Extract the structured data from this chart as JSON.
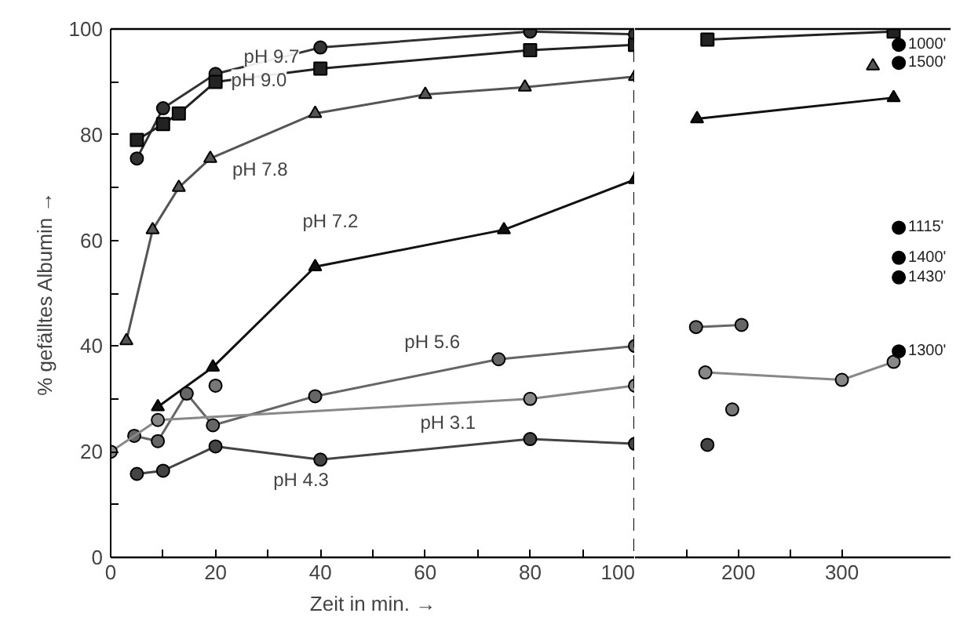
{
  "chart_data": [
    {
      "type": "line",
      "xlabel": "Zeit in min. →",
      "ylabel": "% gefälltes Albumin →",
      "xlim": [
        0,
        100
      ],
      "ylim": [
        0,
        100
      ],
      "xticks": [
        0,
        {
          "value": 10,
          "label": null
        },
        20,
        {
          "value": 30,
          "label": null
        },
        40,
        {
          "value": 50,
          "label": null
        },
        60,
        {
          "value": 70,
          "label": null
        },
        80,
        {
          "value": 90,
          "label": null
        },
        100
      ],
      "yticks": [
        0,
        {
          "value": 10,
          "label": null
        },
        20,
        {
          "value": 30,
          "label": null
        },
        40,
        {
          "value": 50,
          "label": null
        },
        60,
        {
          "value": 70,
          "label": null
        },
        80,
        {
          "value": 90,
          "label": null
        },
        100
      ],
      "grid": false,
      "ref_lines": [
        {
          "axis": "x",
          "value": 100,
          "color": "#000000",
          "line_style": "dashed"
        }
      ],
      "series": [
        {
          "name": "pH 9.7",
          "color": "#333333",
          "marker": "circle",
          "x": [
            5,
            10,
            20,
            40,
            80,
            100
          ],
          "values": [
            75.5,
            85,
            91.5,
            96.5,
            99.5,
            99
          ]
        },
        {
          "name": "pH 9.0",
          "color": "#222222",
          "marker": "square",
          "x": [
            5,
            10,
            13,
            20,
            40,
            80,
            100
          ],
          "values": [
            79,
            82,
            84,
            90,
            92.5,
            96,
            97
          ]
        },
        {
          "name": "pH 7.8",
          "color": "#555555",
          "marker": "triangle",
          "x": [
            3,
            8,
            13,
            19,
            39,
            60,
            79,
            100
          ],
          "values": [
            41,
            62,
            70,
            75.5,
            84,
            87.6,
            89,
            91
          ]
        },
        {
          "name": "pH 7.2",
          "color": "#111111",
          "marker": "triangle",
          "x": [
            9,
            19.5,
            39,
            75,
            100
          ],
          "values": [
            28.5,
            36,
            55,
            62,
            71.5
          ]
        },
        {
          "name": "pH 5.6",
          "color": "#666666",
          "marker": "circle",
          "x": [
            4.5,
            9,
            14.5,
            19.5,
            39,
            74,
            100
          ],
          "values": [
            23,
            22,
            31,
            25,
            30.5,
            37.5,
            40
          ]
        },
        {
          "name": "pH 3.1",
          "color": "#888888",
          "marker": "circle",
          "x": [
            0,
            9,
            80,
            100
          ],
          "values": [
            20,
            26,
            30,
            32.5
          ]
        },
        {
          "name": "pH 4.3",
          "color": "#444444",
          "marker": "circle",
          "x": [
            5,
            10,
            20,
            40,
            80,
            100
          ],
          "values": [
            15.8,
            16.4,
            21,
            18.5,
            22.4,
            21.5
          ]
        },
        {
          "type": "scatter",
          "color": "#777777",
          "marker": "circle",
          "x": [
            20
          ],
          "values": [
            32.5
          ]
        }
      ]
    },
    {
      "type": "line",
      "xlim": [
        100,
        405
      ],
      "ylim": [
        0,
        100
      ],
      "tick_labels": "x",
      "xticks": [
        {
          "value": 150,
          "label": null
        },
        200,
        {
          "value": 250,
          "label": null
        },
        300
      ],
      "grid": false,
      "annotations": [
        "1000'",
        "1500'",
        "1115'",
        "1400'",
        "1430'",
        "1300'"
      ],
      "series": [
        {
          "color": "#222222",
          "marker": "square",
          "x": [
            170,
            350
          ],
          "values": [
            98,
            99.5
          ]
        },
        {
          "color": "#555555",
          "marker": "triangle",
          "x": [
            330
          ],
          "values": [
            93
          ]
        },
        {
          "color": "#111111",
          "marker": "triangle",
          "x": [
            160,
            350
          ],
          "values": [
            83,
            87
          ]
        },
        {
          "color": "#666666",
          "marker": "circle",
          "x": [
            159,
            203
          ],
          "values": [
            43.6,
            44
          ]
        },
        {
          "color": "#888888",
          "marker": "circle",
          "x": [
            168,
            300,
            350
          ],
          "values": [
            35,
            33.6,
            37
          ]
        },
        {
          "color": "#444444",
          "marker": "circle",
          "x": [
            170
          ],
          "values": [
            21.3
          ]
        },
        {
          "type": "scatter",
          "color": "#777777",
          "marker": "circle",
          "x": [
            194
          ],
          "values": [
            28
          ]
        },
        {
          "type": "scatter",
          "color": "#000000",
          "marker": "circle",
          "x": [
            355,
            355,
            355,
            355,
            355,
            355
          ],
          "values": [
            97,
            93.6,
            62.4,
            56.7,
            53,
            39
          ]
        }
      ]
    }
  ]
}
